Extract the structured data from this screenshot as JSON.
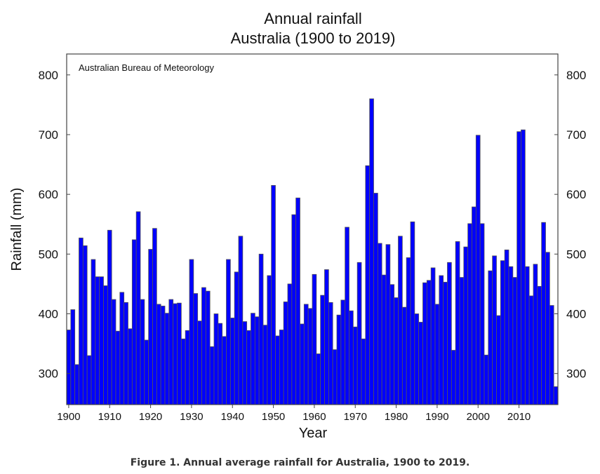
{
  "chart_data": {
    "type": "bar",
    "title": "Annual rainfall",
    "subtitle": "Australia (1900 to 2019)",
    "annotation": "Australian Bureau of Meteorology",
    "xlabel": "Year",
    "ylabel": "Rainfall (mm)",
    "ylim": [
      248,
      835
    ],
    "xlim": [
      1899.5,
      2019.5
    ],
    "yticks": [
      300,
      400,
      500,
      600,
      700,
      800
    ],
    "xticks": [
      1900,
      1910,
      1920,
      1930,
      1940,
      1950,
      1960,
      1970,
      1980,
      1990,
      2000,
      2010
    ],
    "bar_color": "#0000ff",
    "x_start": 1900,
    "values": [
      373,
      407,
      315,
      527,
      514,
      330,
      491,
      462,
      462,
      447,
      540,
      424,
      371,
      436,
      419,
      375,
      524,
      571,
      424,
      356,
      508,
      543,
      416,
      413,
      401,
      424,
      417,
      418,
      358,
      372,
      491,
      434,
      388,
      444,
      438,
      345,
      400,
      384,
      362,
      491,
      393,
      470,
      530,
      387,
      372,
      401,
      395,
      500,
      381,
      464,
      615,
      363,
      373,
      420,
      450,
      566,
      594,
      383,
      416,
      409,
      466,
      333,
      431,
      474,
      419,
      340,
      398,
      423,
      545,
      405,
      378,
      486,
      358,
      648,
      760,
      602,
      518,
      465,
      516,
      449,
      427,
      530,
      411,
      494,
      554,
      400,
      386,
      452,
      456,
      477,
      416,
      464,
      453,
      486,
      339,
      521,
      461,
      512,
      551,
      579,
      699,
      551,
      331,
      472,
      497,
      397,
      489,
      507,
      479,
      461,
      705,
      708,
      479,
      430,
      483,
      446,
      553,
      503,
      414,
      278
    ]
  },
  "caption": "Figure 1. Annual average rainfall for Australia, 1900 to 2019."
}
